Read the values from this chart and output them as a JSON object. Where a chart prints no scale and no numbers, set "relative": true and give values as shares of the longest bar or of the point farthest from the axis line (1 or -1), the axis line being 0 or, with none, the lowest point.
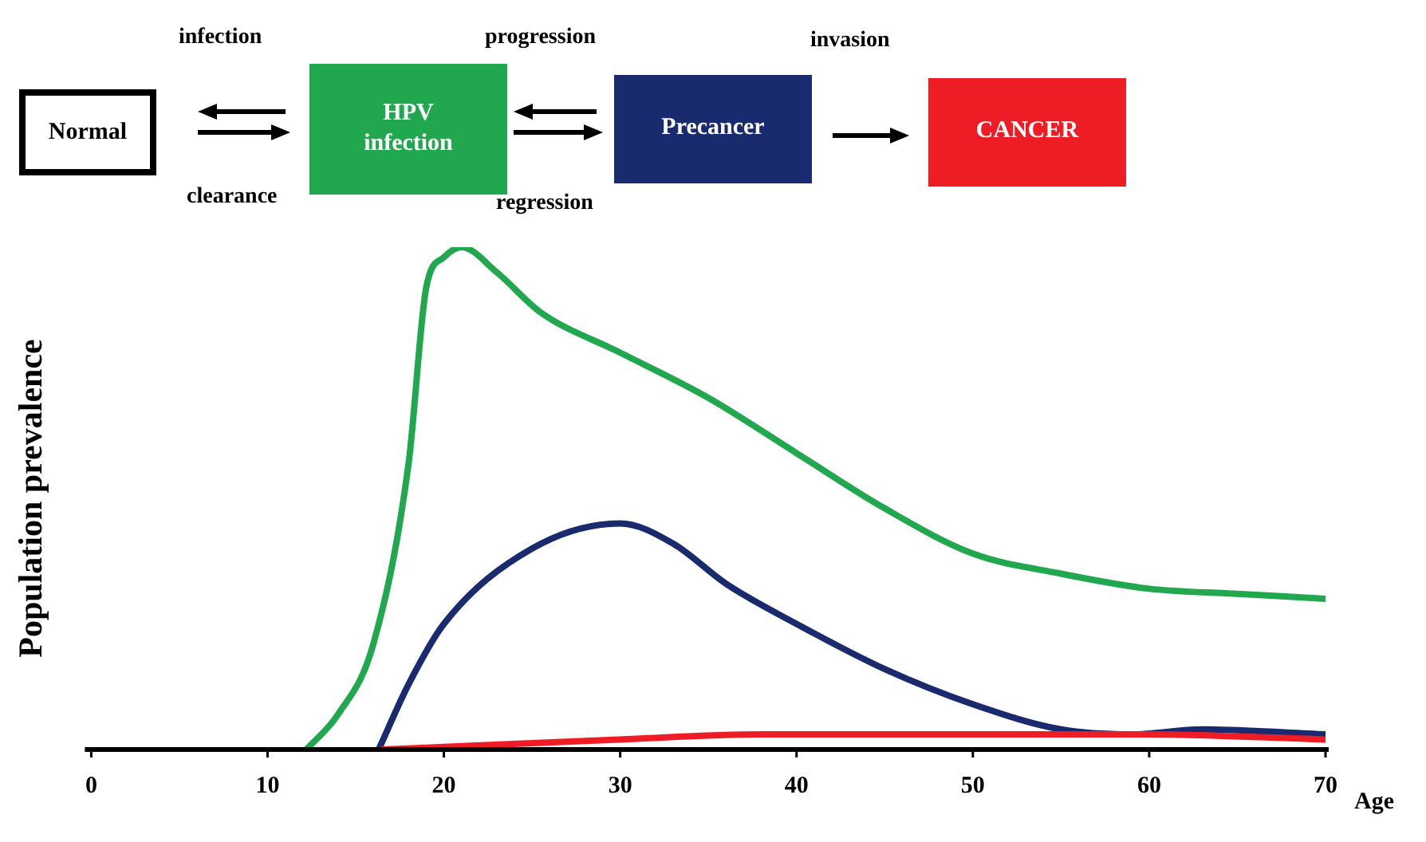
{
  "chart_data": {
    "type": "line",
    "relative": true,
    "xlabel": "Age",
    "ylabel": "Population prevalence",
    "xlim": [
      0,
      70
    ],
    "xticks": [
      0,
      10,
      20,
      30,
      40,
      50,
      60,
      70
    ],
    "tick_labels": "x",
    "grid": false,
    "marker": "none",
    "line_style": "solid",
    "annotations": [
      "Normal",
      "infection",
      "clearance",
      "progression",
      "regression",
      "invasion",
      "HPV infection",
      "Precancer",
      "CANCER"
    ],
    "series": [
      {
        "color": "#21a84f",
        "x": [
          12.2,
          14,
          16,
          18,
          19,
          20,
          21,
          23,
          25.5,
          30,
          35,
          40,
          45,
          50,
          55,
          60,
          65,
          70
        ],
        "values": [
          0,
          0.07,
          0.21,
          0.57,
          0.92,
          0.98,
          1,
          0.95,
          0.87,
          0.79,
          0.7,
          0.59,
          0.48,
          0.39,
          0.35,
          0.32,
          0.31,
          0.3
        ]
      },
      {
        "color": "#1a2a6e",
        "x": [
          16.3,
          18,
          20,
          25,
          30,
          33,
          36,
          40,
          45,
          50,
          55,
          59,
          63,
          70
        ],
        "values": [
          0,
          0.13,
          0.25,
          0.4,
          0.45,
          0.41,
          0.33,
          0.25,
          0.16,
          0.09,
          0.04,
          0.03,
          0.04,
          0.03
        ]
      },
      {
        "color": "#ee1c25",
        "x": [
          16.5,
          20,
          30,
          38,
          45,
          60,
          70
        ],
        "values": [
          0,
          0.005,
          0.02,
          0.03,
          0.03,
          0.03,
          0.02
        ]
      }
    ]
  }
}
